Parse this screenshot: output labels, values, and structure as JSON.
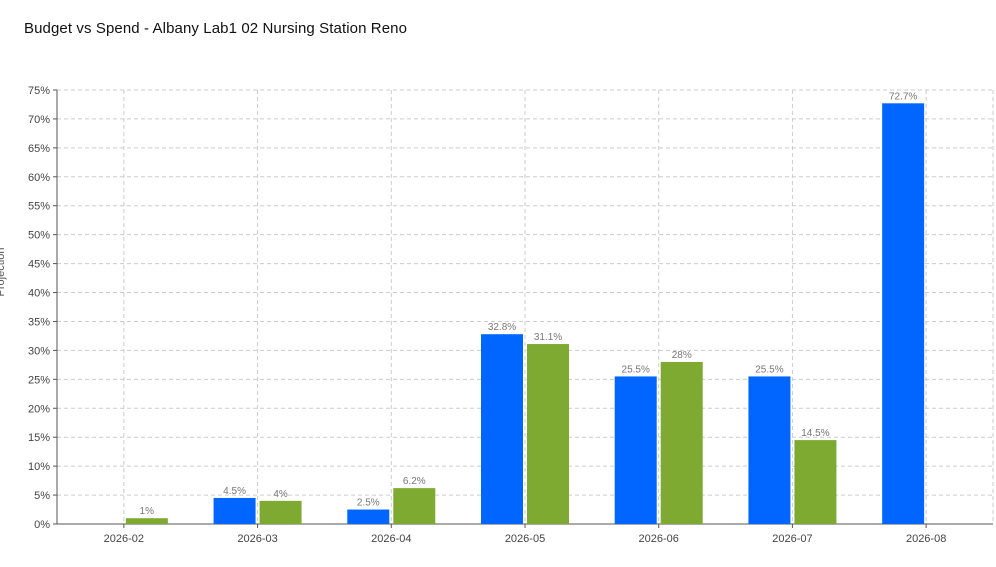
{
  "title": "Budget vs Spend - Albany Lab1 02 Nursing Station Reno",
  "colors": {
    "series_blue": "#0066ff",
    "series_green": "#7faa32",
    "grid": "#cccccc",
    "axis": "#555555"
  },
  "chart_data": {
    "type": "bar",
    "title": "Budget vs Spend - Albany Lab1 02 Nursing Station Reno",
    "xlabel": "",
    "ylabel": "Projection",
    "ylim": [
      0,
      75
    ],
    "yticks": [
      "0%",
      "5%",
      "10%",
      "15%",
      "20%",
      "25%",
      "30%",
      "35%",
      "40%",
      "45%",
      "50%",
      "55%",
      "60%",
      "65%",
      "70%",
      "75%"
    ],
    "categories": [
      "2026-02",
      "2026-03",
      "2026-04",
      "2026-05",
      "2026-06",
      "2026-07",
      "2026-08"
    ],
    "series": [
      {
        "color": "#0066ff",
        "values": [
          null,
          4.5,
          2.5,
          32.8,
          25.5,
          25.5,
          72.7
        ],
        "labels": [
          "",
          "4.5%",
          "2.5%",
          "32.8%",
          "25.5%",
          "25.5%",
          "72.7%"
        ]
      },
      {
        "color": "#7faa32",
        "values": [
          1,
          4,
          6.2,
          31.1,
          28,
          14.5,
          null
        ],
        "labels": [
          "1%",
          "4%",
          "6.2%",
          "31.1%",
          "28%",
          "14.5%",
          ""
        ]
      }
    ],
    "grid": true,
    "legend": "none"
  }
}
